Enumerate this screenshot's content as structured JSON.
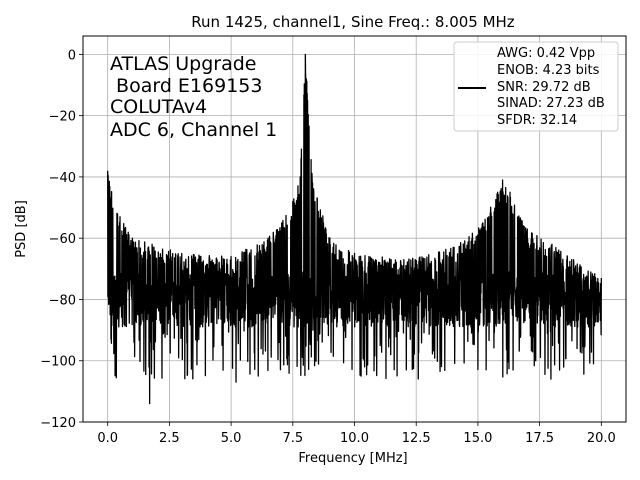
{
  "chart_data": {
    "type": "line",
    "title": "Run 1425, channel1, Sine Freq.: 8.005 MHz",
    "xlabel": "Frequency [MHz]",
    "ylabel": "PSD [dB]",
    "xlim": [
      -1.0,
      21.0
    ],
    "ylim": [
      -120,
      6
    ],
    "xticks": [
      0.0,
      2.5,
      5.0,
      7.5,
      10.0,
      12.5,
      15.0,
      17.5,
      20.0
    ],
    "xtick_labels": [
      "0.0",
      "2.5",
      "5.0",
      "7.5",
      "10.0",
      "12.5",
      "15.0",
      "17.5",
      "20.0"
    ],
    "yticks": [
      0,
      -20,
      -40,
      -60,
      -80,
      -100,
      -120
    ],
    "ytick_labels": [
      "0",
      "−20",
      "−40",
      "−60",
      "−80",
      "−100",
      "−120"
    ],
    "grid": true,
    "legend_position": "top-right",
    "annotation_lines": [
      "ATLAS Upgrade",
      " Board E169153",
      "COLUTAv4",
      "ADC 6, Channel 1"
    ],
    "legend_lines": [
      "AWG: 0.42 Vpp",
      "ENOB: 4.23 bits",
      "SNR: 29.72 dB",
      "SINAD: 27.23 dB",
      "SFDR: 32.14"
    ],
    "series": [
      {
        "color": "#000000",
        "noise_floor_db": -80,
        "envelope_peaks": [
          {
            "x": 0.0,
            "y": -38
          },
          {
            "x": 0.5,
            "y": -53
          },
          {
            "x": 1.0,
            "y": -60
          },
          {
            "x": 1.8,
            "y": -62
          },
          {
            "x": 3.0,
            "y": -65
          },
          {
            "x": 5.0,
            "y": -66
          },
          {
            "x": 6.5,
            "y": -60
          },
          {
            "x": 7.5,
            "y": -48
          },
          {
            "x": 7.8,
            "y": -40
          },
          {
            "x": 8.005,
            "y": 0
          },
          {
            "x": 8.3,
            "y": -42
          },
          {
            "x": 9.0,
            "y": -60
          },
          {
            "x": 10.0,
            "y": -65
          },
          {
            "x": 12.0,
            "y": -67
          },
          {
            "x": 14.0,
            "y": -63
          },
          {
            "x": 15.2,
            "y": -55
          },
          {
            "x": 15.8,
            "y": -45
          },
          {
            "x": 16.0,
            "y": -41
          },
          {
            "x": 16.3,
            "y": -45
          },
          {
            "x": 17.0,
            "y": -57
          },
          {
            "x": 18.0,
            "y": -62
          },
          {
            "x": 20.0,
            "y": -73
          }
        ],
        "notable_dips": [
          {
            "x": 1.7,
            "y": -114
          },
          {
            "x": 5.2,
            "y": -107
          },
          {
            "x": 6.1,
            "y": -105
          },
          {
            "x": 12.1,
            "y": -103
          }
        ]
      }
    ]
  }
}
